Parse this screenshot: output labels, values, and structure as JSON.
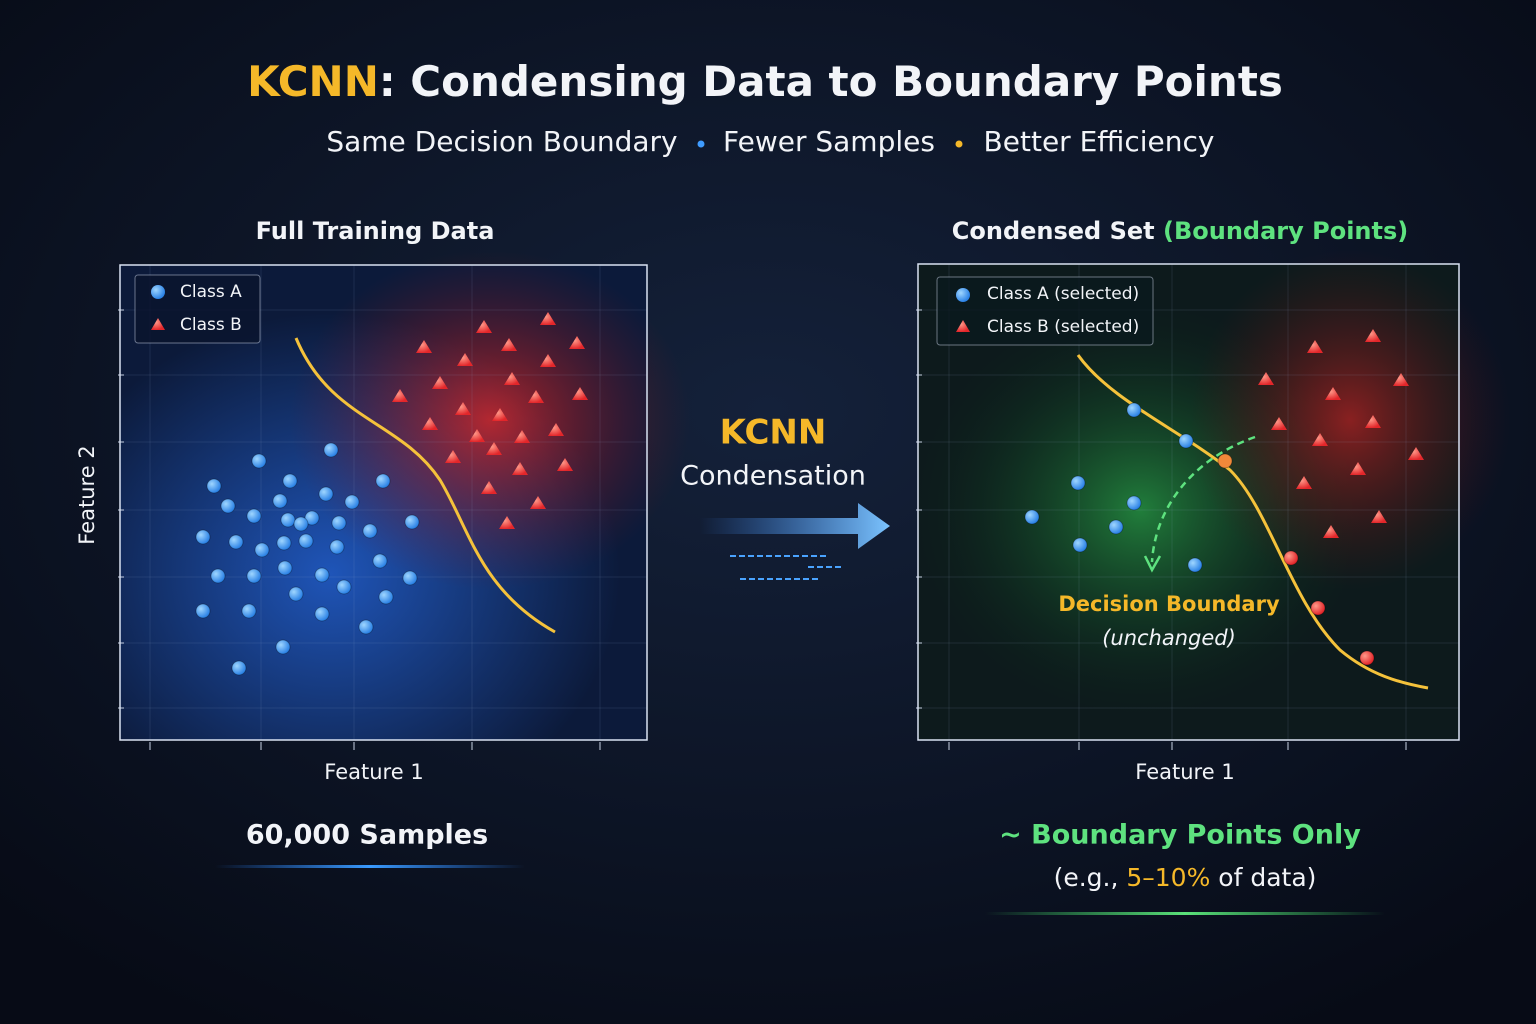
{
  "header": {
    "title_highlight": "KCNN",
    "title_rest": ": Condensing Data to Boundary Points",
    "subtitle": [
      "Same Decision Boundary",
      "Fewer Samples",
      "Better Efficiency"
    ]
  },
  "left_panel": {
    "title": "Full Training Data",
    "legend": [
      "Class A",
      "Class B"
    ],
    "x_label": "Feature 1",
    "y_label": "Feature 2",
    "caption": "60,000 Samples"
  },
  "middle": {
    "title": "KCNN",
    "subtitle": "Condensation"
  },
  "right_panel": {
    "title": "Condensed Set",
    "title_highlight": "(Boundary Points)",
    "legend": [
      "Class A (selected)",
      "Class B (selected)"
    ],
    "annotation": "Decision Boundary",
    "annotation_note": "(unchanged)",
    "x_label": "Feature 1",
    "caption": "~ Boundary Points Only",
    "note_prefix": "(e.g., ",
    "note_highlight": "5–10%",
    "note_suffix": " of data)"
  }
}
